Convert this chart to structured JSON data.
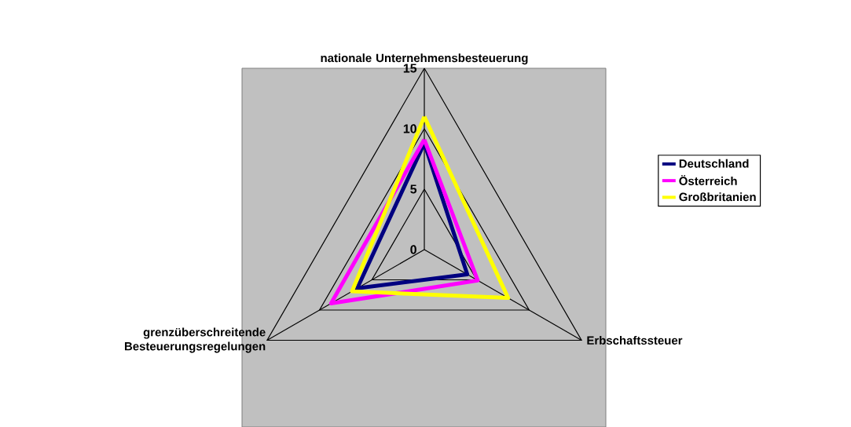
{
  "chart_data": {
    "type": "radar",
    "categories": [
      "nationale Unternehmensbesteuerung",
      "Erbschaftssteuer",
      "grenzüberschreitende Besteuerungsregelungen"
    ],
    "series": [
      {
        "name": "Deutschland",
        "color": "#000080",
        "values": [
          8.8,
          4.1,
          6.4
        ]
      },
      {
        "name": "Österreich",
        "color": "#ff00ff",
        "values": [
          9.1,
          5.1,
          8.9
        ]
      },
      {
        "name": "Großbritanien",
        "color": "#ffff00",
        "values": [
          11.0,
          8.0,
          6.9
        ]
      }
    ],
    "ylim": [
      0,
      15
    ],
    "yticks": [
      0,
      5,
      10,
      15
    ],
    "grid": true,
    "legend": "right"
  }
}
